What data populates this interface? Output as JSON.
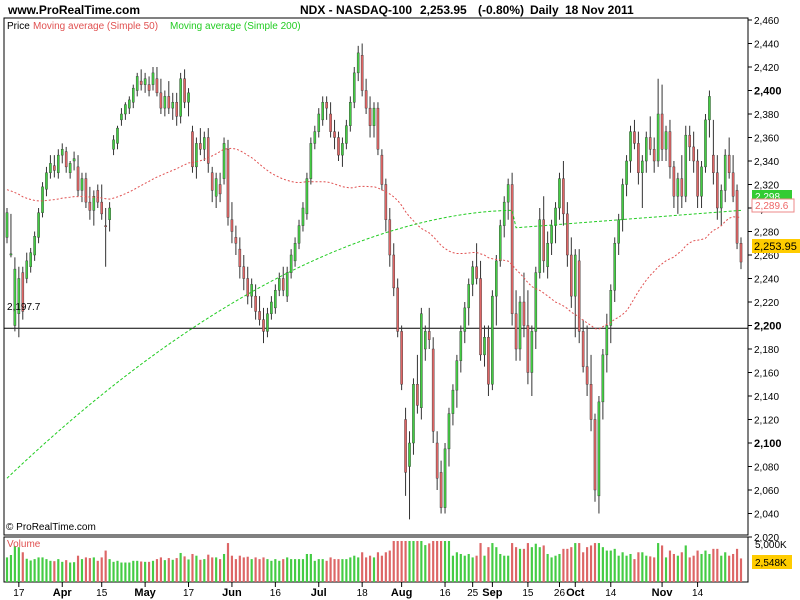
{
  "header": {
    "site": "www.ProRealTime.com",
    "title": "NDX - NASDAQ-100",
    "last": "2,253.95",
    "change": "(-0.80%)",
    "period": "Daily",
    "date": "18 Nov 2011"
  },
  "legend": {
    "price": "Price",
    "ma50": "Moving average (Simple 50)",
    "ma200": "Moving average (Simple 200)"
  },
  "copyright": "© ProRealTime.com",
  "volume_label": "Volume",
  "horizontal_line": {
    "value": 2197.7,
    "label": "2,197.7"
  },
  "price_labels": {
    "last": "2,253.95",
    "ma200": "2,298",
    "ma50": "2,289.6"
  },
  "volume_tags": {
    "max": "5,000K",
    "last": "2,548K"
  },
  "colors": {
    "up": "#44cc44",
    "down": "#dd6666",
    "ma50": "#e05050",
    "ma200": "#22cc22",
    "last_tag": "#ffcc00",
    "ma200_tag": "#33cc33",
    "ma50_tag": "#ee8888"
  },
  "chart_data": {
    "type": "candlestick",
    "title": "NDX - NASDAQ-100",
    "ylim": [
      2020,
      2460
    ],
    "y_ticks": [
      "2,460",
      "2,440",
      "2,420",
      "2,400",
      "2,380",
      "2,360",
      "2,340",
      "2,320",
      "2,300",
      "2,280",
      "2,260",
      "2,240",
      "2,220",
      "2,200",
      "2,180",
      "2,160",
      "2,140",
      "2,120",
      "2,100",
      "2,080",
      "2,060",
      "2,040",
      "2,020"
    ],
    "bold_ticks": [
      "2,400",
      "2,300",
      "2,200",
      "2,100"
    ],
    "x_ticks": [
      {
        "label": "17",
        "i": 3
      },
      {
        "label": "Apr",
        "i": 14,
        "bold": true
      },
      {
        "label": "15",
        "i": 24
      },
      {
        "label": "May",
        "i": 35,
        "bold": true
      },
      {
        "label": "17",
        "i": 46
      },
      {
        "label": "Jun",
        "i": 57,
        "bold": true
      },
      {
        "label": "16",
        "i": 68
      },
      {
        "label": "Jul",
        "i": 79,
        "bold": true
      },
      {
        "label": "18",
        "i": 90
      },
      {
        "label": "Aug",
        "i": 100,
        "bold": true
      },
      {
        "label": "16",
        "i": 111
      },
      {
        "label": "25",
        "i": 118
      },
      {
        "label": "Sep",
        "i": 123,
        "bold": true
      },
      {
        "label": "15",
        "i": 132
      },
      {
        "label": "26",
        "i": 140
      },
      {
        "label": "Oct",
        "i": 144,
        "bold": true
      },
      {
        "label": "14",
        "i": 153
      },
      {
        "label": "Nov",
        "i": 166,
        "bold": true
      },
      {
        "label": "14",
        "i": 175
      }
    ],
    "candles": [
      [
        2275,
        2300,
        2270,
        2296
      ],
      [
        2260,
        2295,
        2258,
        2261
      ],
      [
        2200,
        2258,
        2195,
        2248
      ],
      [
        2210,
        2250,
        2190,
        2240
      ],
      [
        2245,
        2250,
        2205,
        2212
      ],
      [
        2240,
        2262,
        2236,
        2255
      ],
      [
        2250,
        2266,
        2245,
        2262
      ],
      [
        2260,
        2280,
        2255,
        2276
      ],
      [
        2275,
        2300,
        2270,
        2296
      ],
      [
        2296,
        2322,
        2292,
        2318
      ],
      [
        2316,
        2335,
        2310,
        2330
      ],
      [
        2330,
        2345,
        2325,
        2338
      ],
      [
        2336,
        2345,
        2326,
        2332
      ],
      [
        2330,
        2350,
        2325,
        2345
      ],
      [
        2345,
        2355,
        2338,
        2350
      ],
      [
        2348,
        2352,
        2330,
        2335
      ],
      [
        2330,
        2340,
        2325,
        2338
      ],
      [
        2340,
        2348,
        2332,
        2342
      ],
      [
        2335,
        2345,
        2310,
        2315
      ],
      [
        2315,
        2330,
        2305,
        2325
      ],
      [
        2325,
        2330,
        2300,
        2305
      ],
      [
        2305,
        2318,
        2290,
        2298
      ],
      [
        2298,
        2315,
        2285,
        2310
      ],
      [
        2315,
        2320,
        2300,
        2305
      ],
      [
        2305,
        2320,
        2290,
        2295
      ],
      [
        2285,
        2300,
        2250,
        2284
      ],
      [
        2290,
        2305,
        2280,
        2300
      ],
      [
        2350,
        2362,
        2345,
        2358
      ],
      [
        2355,
        2370,
        2350,
        2368
      ],
      [
        2375,
        2385,
        2370,
        2380
      ],
      [
        2380,
        2390,
        2375,
        2388
      ],
      [
        2385,
        2395,
        2380,
        2392
      ],
      [
        2390,
        2405,
        2385,
        2402
      ],
      [
        2400,
        2415,
        2395,
        2412
      ],
      [
        2408,
        2418,
        2400,
        2405
      ],
      [
        2405,
        2415,
        2398,
        2410
      ],
      [
        2405,
        2412,
        2395,
        2400
      ],
      [
        2405,
        2420,
        2400,
        2415
      ],
      [
        2410,
        2420,
        2395,
        2398
      ],
      [
        2398,
        2410,
        2380,
        2385
      ],
      [
        2385,
        2400,
        2378,
        2395
      ],
      [
        2395,
        2408,
        2380,
        2385
      ],
      [
        2385,
        2398,
        2375,
        2390
      ],
      [
        2390,
        2398,
        2370,
        2378
      ],
      [
        2378,
        2415,
        2372,
        2410
      ],
      [
        2410,
        2418,
        2385,
        2390
      ],
      [
        2390,
        2402,
        2378,
        2398
      ],
      [
        2365,
        2370,
        2330,
        2335
      ],
      [
        2335,
        2360,
        2325,
        2355
      ],
      [
        2355,
        2368,
        2345,
        2350
      ],
      [
        2350,
        2365,
        2340,
        2360
      ],
      [
        2360,
        2368,
        2330,
        2338
      ],
      [
        2330,
        2335,
        2305,
        2315
      ],
      [
        2310,
        2330,
        2300,
        2325
      ],
      [
        2320,
        2330,
        2305,
        2312
      ],
      [
        2325,
        2360,
        2320,
        2355
      ],
      [
        2350,
        2358,
        2285,
        2292
      ],
      [
        2290,
        2305,
        2270,
        2280
      ],
      [
        2275,
        2285,
        2260,
        2270
      ],
      [
        2265,
        2275,
        2240,
        2250
      ],
      [
        2250,
        2260,
        2230,
        2240
      ],
      [
        2240,
        2250,
        2218,
        2225
      ],
      [
        2225,
        2240,
        2215,
        2235
      ],
      [
        2225,
        2235,
        2205,
        2212
      ],
      [
        2212,
        2225,
        2200,
        2205
      ],
      [
        2205,
        2215,
        2185,
        2195
      ],
      [
        2195,
        2215,
        2190,
        2210
      ],
      [
        2210,
        2225,
        2205,
        2220
      ],
      [
        2215,
        2235,
        2210,
        2230
      ],
      [
        2230,
        2245,
        2225,
        2240
      ],
      [
        2240,
        2250,
        2225,
        2230
      ],
      [
        2225,
        2250,
        2220,
        2245
      ],
      [
        2245,
        2265,
        2240,
        2260
      ],
      [
        2255,
        2275,
        2250,
        2270
      ],
      [
        2270,
        2290,
        2265,
        2285
      ],
      [
        2285,
        2305,
        2280,
        2300
      ],
      [
        2295,
        2330,
        2290,
        2325
      ],
      [
        2325,
        2360,
        2320,
        2355
      ],
      [
        2355,
        2370,
        2350,
        2365
      ],
      [
        2365,
        2385,
        2360,
        2380
      ],
      [
        2375,
        2395,
        2370,
        2390
      ],
      [
        2390,
        2395,
        2375,
        2385
      ],
      [
        2380,
        2390,
        2360,
        2365
      ],
      [
        2365,
        2375,
        2350,
        2360
      ],
      [
        2360,
        2365,
        2340,
        2345
      ],
      [
        2345,
        2360,
        2335,
        2355
      ],
      [
        2355,
        2375,
        2350,
        2370
      ],
      [
        2370,
        2395,
        2365,
        2390
      ],
      [
        2390,
        2420,
        2385,
        2415
      ],
      [
        2415,
        2438,
        2408,
        2432
      ],
      [
        2430,
        2440,
        2395,
        2400
      ],
      [
        2400,
        2410,
        2380,
        2385
      ],
      [
        2385,
        2395,
        2360,
        2370
      ],
      [
        2370,
        2390,
        2360,
        2385
      ],
      [
        2385,
        2390,
        2345,
        2350
      ],
      [
        2345,
        2350,
        2315,
        2320
      ],
      [
        2320,
        2325,
        2280,
        2290
      ],
      [
        2290,
        2300,
        2250,
        2260
      ],
      [
        2260,
        2270,
        2225,
        2232
      ],
      [
        2232,
        2240,
        2190,
        2195
      ],
      [
        2195,
        2200,
        2145,
        2150
      ],
      [
        2120,
        2130,
        2055,
        2075
      ],
      [
        2080,
        2110,
        2035,
        2100
      ],
      [
        2100,
        2155,
        2090,
        2150
      ],
      [
        2150,
        2175,
        2125,
        2132
      ],
      [
        2130,
        2215,
        2120,
        2210
      ],
      [
        2180,
        2200,
        2170,
        2195
      ],
      [
        2195,
        2215,
        2180,
        2188
      ],
      [
        2180,
        2190,
        2100,
        2110
      ],
      [
        2100,
        2110,
        2060,
        2070
      ],
      [
        2075,
        2085,
        2040,
        2045
      ],
      [
        2045,
        2100,
        2040,
        2095
      ],
      [
        2095,
        2130,
        2080,
        2125
      ],
      [
        2125,
        2150,
        2115,
        2145
      ],
      [
        2145,
        2175,
        2130,
        2170
      ],
      [
        2170,
        2200,
        2160,
        2195
      ],
      [
        2195,
        2220,
        2185,
        2215
      ],
      [
        2215,
        2240,
        2200,
        2235
      ],
      [
        2235,
        2255,
        2225,
        2250
      ],
      [
        2250,
        2270,
        2235,
        2240
      ],
      [
        2240,
        2255,
        2170,
        2175
      ],
      [
        2175,
        2200,
        2165,
        2190
      ],
      [
        2190,
        2200,
        2140,
        2150
      ],
      [
        2150,
        2230,
        2145,
        2225
      ],
      [
        2225,
        2260,
        2200,
        2255
      ],
      [
        2255,
        2290,
        2250,
        2285
      ],
      [
        2285,
        2310,
        2275,
        2305
      ],
      [
        2305,
        2325,
        2290,
        2320
      ],
      [
        2320,
        2330,
        2200,
        2210
      ],
      [
        2210,
        2230,
        2170,
        2180
      ],
      [
        2180,
        2225,
        2170,
        2220
      ],
      [
        2220,
        2245,
        2190,
        2200
      ],
      [
        2200,
        2230,
        2150,
        2160
      ],
      [
        2160,
        2200,
        2140,
        2195
      ],
      [
        2195,
        2250,
        2180,
        2245
      ],
      [
        2245,
        2300,
        2240,
        2290
      ],
      [
        2290,
        2310,
        2245,
        2255
      ],
      [
        2250,
        2280,
        2240,
        2270
      ],
      [
        2270,
        2290,
        2260,
        2285
      ],
      [
        2285,
        2305,
        2270,
        2300
      ],
      [
        2300,
        2330,
        2290,
        2325
      ],
      [
        2325,
        2340,
        2285,
        2295
      ],
      [
        2295,
        2305,
        2250,
        2260
      ],
      [
        2260,
        2275,
        2215,
        2225
      ],
      [
        2225,
        2265,
        2190,
        2260
      ],
      [
        2255,
        2265,
        2185,
        2195
      ],
      [
        2195,
        2205,
        2160,
        2165
      ],
      [
        2165,
        2200,
        2140,
        2150
      ],
      [
        2150,
        2175,
        2110,
        2120
      ],
      [
        2120,
        2125,
        2050,
        2060
      ],
      [
        2055,
        2140,
        2040,
        2135
      ],
      [
        2135,
        2180,
        2120,
        2175
      ],
      [
        2175,
        2210,
        2160,
        2200
      ],
      [
        2200,
        2235,
        2185,
        2230
      ],
      [
        2230,
        2275,
        2220,
        2270
      ],
      [
        2270,
        2295,
        2260,
        2290
      ],
      [
        2290,
        2325,
        2280,
        2320
      ],
      [
        2320,
        2345,
        2310,
        2340
      ],
      [
        2340,
        2370,
        2330,
        2365
      ],
      [
        2365,
        2375,
        2350,
        2355
      ],
      [
        2355,
        2365,
        2320,
        2330
      ],
      [
        2330,
        2345,
        2300,
        2340
      ],
      [
        2340,
        2365,
        2330,
        2360
      ],
      [
        2360,
        2378,
        2345,
        2350
      ],
      [
        2350,
        2360,
        2330,
        2340
      ],
      [
        2340,
        2410,
        2335,
        2380
      ],
      [
        2380,
        2405,
        2340,
        2350
      ],
      [
        2350,
        2370,
        2340,
        2365
      ],
      [
        2365,
        2375,
        2325,
        2335
      ],
      [
        2335,
        2340,
        2300,
        2310
      ],
      [
        2310,
        2330,
        2295,
        2325
      ],
      [
        2325,
        2345,
        2300,
        2310
      ],
      [
        2310,
        2370,
        2305,
        2362
      ],
      [
        2362,
        2370,
        2340,
        2352
      ],
      [
        2352,
        2365,
        2330,
        2340
      ],
      [
        2340,
        2350,
        2300,
        2310
      ],
      [
        2310,
        2340,
        2300,
        2335
      ],
      [
        2335,
        2380,
        2330,
        2375
      ],
      [
        2375,
        2400,
        2360,
        2395
      ],
      [
        2345,
        2375,
        2320,
        2330
      ],
      [
        2330,
        2345,
        2290,
        2300
      ],
      [
        2300,
        2320,
        2285,
        2315
      ],
      [
        2315,
        2350,
        2305,
        2345
      ],
      [
        2345,
        2360,
        2325,
        2330
      ],
      [
        2330,
        2345,
        2305,
        2310
      ],
      [
        2315,
        2320,
        2265,
        2270
      ],
      [
        2270,
        2275,
        2248,
        2254
      ]
    ],
    "ma50_start": [
      2316,
      2300,
      2330,
      2316
    ],
    "ma200_start": 2070,
    "ma200_end": 2298,
    "ma50_end": 2289.6
  }
}
